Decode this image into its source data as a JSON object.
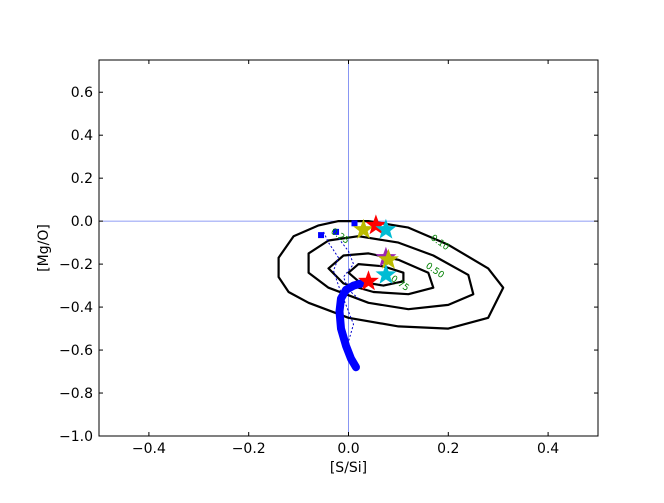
{
  "chart_data": {
    "type": "scatter",
    "title": "",
    "xlabel": "[S/Si]",
    "ylabel": "[Mg/O]",
    "xlim": [
      -0.5,
      0.5
    ],
    "ylim": [
      -1.0,
      0.75
    ],
    "xticks": [
      -0.4,
      -0.2,
      0.0,
      0.2,
      0.4
    ],
    "xtick_labels": [
      "−0.4",
      "−0.2",
      "0.0",
      "0.2",
      "0.4"
    ],
    "yticks": [
      -1.0,
      -0.8,
      -0.6,
      -0.4,
      -0.2,
      0.0,
      0.2,
      0.4,
      0.6
    ],
    "ytick_labels": [
      "−1.0",
      "−0.8",
      "−0.6",
      "−0.4",
      "−0.2",
      "0.0",
      "0.2",
      "0.4",
      "0.6"
    ],
    "grid": false,
    "reference_lines": {
      "x": 0.0,
      "y": 0.0,
      "color": "#6b7cf0"
    },
    "contours": [
      {
        "level": "0.10",
        "points": [
          [
            -0.06,
            -0.02
          ],
          [
            -0.02,
            0.0
          ],
          [
            0.04,
            0.0
          ],
          [
            0.12,
            -0.03
          ],
          [
            0.2,
            -0.11
          ],
          [
            0.28,
            -0.22
          ],
          [
            0.31,
            -0.31
          ],
          [
            0.28,
            -0.45
          ],
          [
            0.2,
            -0.5
          ],
          [
            0.1,
            -0.49
          ],
          [
            0.0,
            -0.45
          ],
          [
            -0.08,
            -0.38
          ],
          [
            -0.12,
            -0.33
          ],
          [
            -0.14,
            -0.26
          ],
          [
            -0.14,
            -0.17
          ],
          [
            -0.11,
            -0.07
          ]
        ]
      },
      {
        "level": "0.50",
        "points": [
          [
            -0.04,
            -0.09
          ],
          [
            0.02,
            -0.07
          ],
          [
            0.1,
            -0.1
          ],
          [
            0.17,
            -0.16
          ],
          [
            0.24,
            -0.25
          ],
          [
            0.25,
            -0.34
          ],
          [
            0.2,
            -0.39
          ],
          [
            0.12,
            -0.41
          ],
          [
            0.04,
            -0.38
          ],
          [
            -0.04,
            -0.31
          ],
          [
            -0.08,
            -0.24
          ],
          [
            -0.08,
            -0.15
          ]
        ]
      },
      {
        "level": "0.75",
        "points": [
          [
            -0.01,
            -0.16
          ],
          [
            0.04,
            -0.15
          ],
          [
            0.1,
            -0.18
          ],
          [
            0.16,
            -0.24
          ],
          [
            0.17,
            -0.31
          ],
          [
            0.12,
            -0.34
          ],
          [
            0.05,
            -0.33
          ],
          [
            -0.01,
            -0.29
          ],
          [
            -0.04,
            -0.22
          ]
        ]
      },
      {
        "level": "",
        "points": [
          [
            0.02,
            -0.2
          ],
          [
            0.07,
            -0.21
          ],
          [
            0.11,
            -0.24
          ],
          [
            0.11,
            -0.28
          ],
          [
            0.07,
            -0.3
          ],
          [
            0.02,
            -0.28
          ],
          [
            0.0,
            -0.24
          ]
        ]
      }
    ],
    "contour_labels": [
      {
        "text": "0.10",
        "x": 0.18,
        "y": -0.11
      },
      {
        "text": "0.50",
        "x": 0.17,
        "y": -0.24
      },
      {
        "text": "0.75",
        "x": 0.1,
        "y": -0.3
      },
      {
        "text": "0.25",
        "x": -0.02,
        "y": -0.08
      }
    ],
    "track": {
      "color": "#0000ff",
      "points": [
        [
          0.015,
          -0.68
        ],
        [
          0.005,
          -0.64
        ],
        [
          -0.005,
          -0.58
        ],
        [
          -0.015,
          -0.5
        ],
        [
          -0.018,
          -0.42
        ],
        [
          -0.015,
          -0.36
        ],
        [
          -0.005,
          -0.32
        ],
        [
          0.01,
          -0.3
        ],
        [
          0.025,
          -0.29
        ]
      ]
    },
    "dotted_tracks": [
      {
        "color": "#0000cc",
        "points": [
          [
            -0.05,
            -0.05
          ],
          [
            -0.04,
            -0.1
          ],
          [
            -0.02,
            -0.17
          ],
          [
            -0.03,
            -0.23
          ],
          [
            -0.02,
            -0.3
          ],
          [
            -0.01,
            -0.36
          ],
          [
            0.0,
            -0.42
          ],
          [
            0.01,
            -0.48
          ],
          [
            0.0,
            -0.56
          ]
        ]
      },
      {
        "color": "#0000cc",
        "points": [
          [
            -0.02,
            -0.08
          ],
          [
            0.0,
            -0.14
          ],
          [
            0.01,
            -0.2
          ],
          [
            -0.01,
            -0.26
          ],
          [
            0.0,
            -0.32
          ],
          [
            0.02,
            -0.36
          ]
        ]
      }
    ],
    "blue_points": [
      {
        "x": -0.055,
        "y": -0.065
      },
      {
        "x": -0.025,
        "y": -0.05
      },
      {
        "x": 0.012,
        "y": -0.01
      }
    ],
    "stars": [
      {
        "x": 0.03,
        "y": -0.04,
        "color": "#bbbb00"
      },
      {
        "x": 0.055,
        "y": -0.02,
        "color": "#ff0000"
      },
      {
        "x": 0.075,
        "y": -0.04,
        "color": "#00bcd4"
      },
      {
        "x": 0.075,
        "y": -0.17,
        "color": "#9c27b0"
      },
      {
        "x": 0.08,
        "y": -0.18,
        "color": "#bbbb00"
      },
      {
        "x": 0.075,
        "y": -0.25,
        "color": "#00bcd4"
      },
      {
        "x": 0.04,
        "y": -0.28,
        "color": "#ff0000"
      }
    ]
  }
}
